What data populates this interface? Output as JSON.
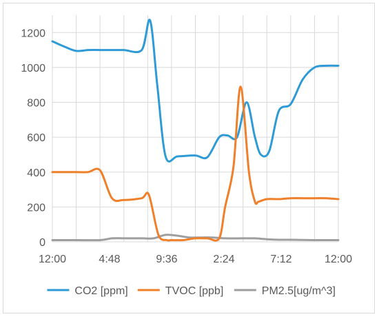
{
  "colors": {
    "co2": "#2e9bd6",
    "tvoc": "#f07f2a",
    "pm25": "#9e9e9e",
    "grid": "#d9d9d9",
    "axis_text": "#595959"
  },
  "chart_data": {
    "type": "line",
    "title": "",
    "xlabel": "",
    "ylabel": "",
    "ylim": [
      0,
      1300
    ],
    "y_ticks": [
      0,
      200,
      400,
      600,
      800,
      1000,
      1200
    ],
    "x_range": [
      0,
      24
    ],
    "x_ticks": [
      {
        "value": 0,
        "label": "12:00"
      },
      {
        "value": 4.8,
        "label": "4:48"
      },
      {
        "value": 9.6,
        "label": "9:36"
      },
      {
        "value": 14.4,
        "label": "2:24"
      },
      {
        "value": 19.2,
        "label": "7:12"
      },
      {
        "value": 24,
        "label": "12:00"
      }
    ],
    "grid": true,
    "legend_position": "bottom",
    "series": [
      {
        "name": "CO2 [ppm]",
        "color": "#2e9bd6",
        "x": [
          0,
          1,
          2,
          3,
          4,
          5,
          6,
          7.5,
          8.2,
          8.8,
          9.5,
          10.5,
          12,
          13,
          14,
          14.7,
          15.5,
          16.3,
          17,
          17.5,
          18.2,
          19,
          20,
          21,
          22,
          23,
          24
        ],
        "y": [
          1150,
          1120,
          1095,
          1100,
          1100,
          1100,
          1100,
          1100,
          1270,
          900,
          490,
          490,
          495,
          485,
          600,
          610,
          600,
          800,
          600,
          500,
          520,
          750,
          790,
          930,
          1000,
          1010,
          1010
        ]
      },
      {
        "name": "TVOC [ppb]",
        "color": "#f07f2a",
        "x": [
          0,
          1,
          2,
          3,
          4,
          5,
          6,
          7.5,
          8.1,
          8.9,
          9.6,
          10,
          11,
          12,
          13,
          14,
          14.5,
          15.2,
          15.8,
          16.5,
          17,
          17.3,
          18,
          19,
          20,
          21,
          22,
          23,
          24
        ],
        "y": [
          400,
          400,
          400,
          400,
          410,
          250,
          240,
          250,
          270,
          40,
          10,
          10,
          10,
          20,
          20,
          20,
          200,
          430,
          890,
          400,
          230,
          230,
          245,
          245,
          250,
          250,
          250,
          250,
          245
        ]
      },
      {
        "name": "PM2.5[ug/m^3]",
        "color": "#9e9e9e",
        "x": [
          0,
          2,
          4,
          5,
          6,
          7.5,
          8.5,
          9.5,
          10.5,
          11.5,
          12.5,
          13.5,
          14.5,
          16,
          17,
          18,
          19,
          20,
          22,
          24
        ],
        "y": [
          10,
          10,
          10,
          20,
          20,
          20,
          20,
          40,
          35,
          25,
          25,
          25,
          20,
          20,
          20,
          15,
          12,
          12,
          10,
          10
        ]
      }
    ]
  }
}
